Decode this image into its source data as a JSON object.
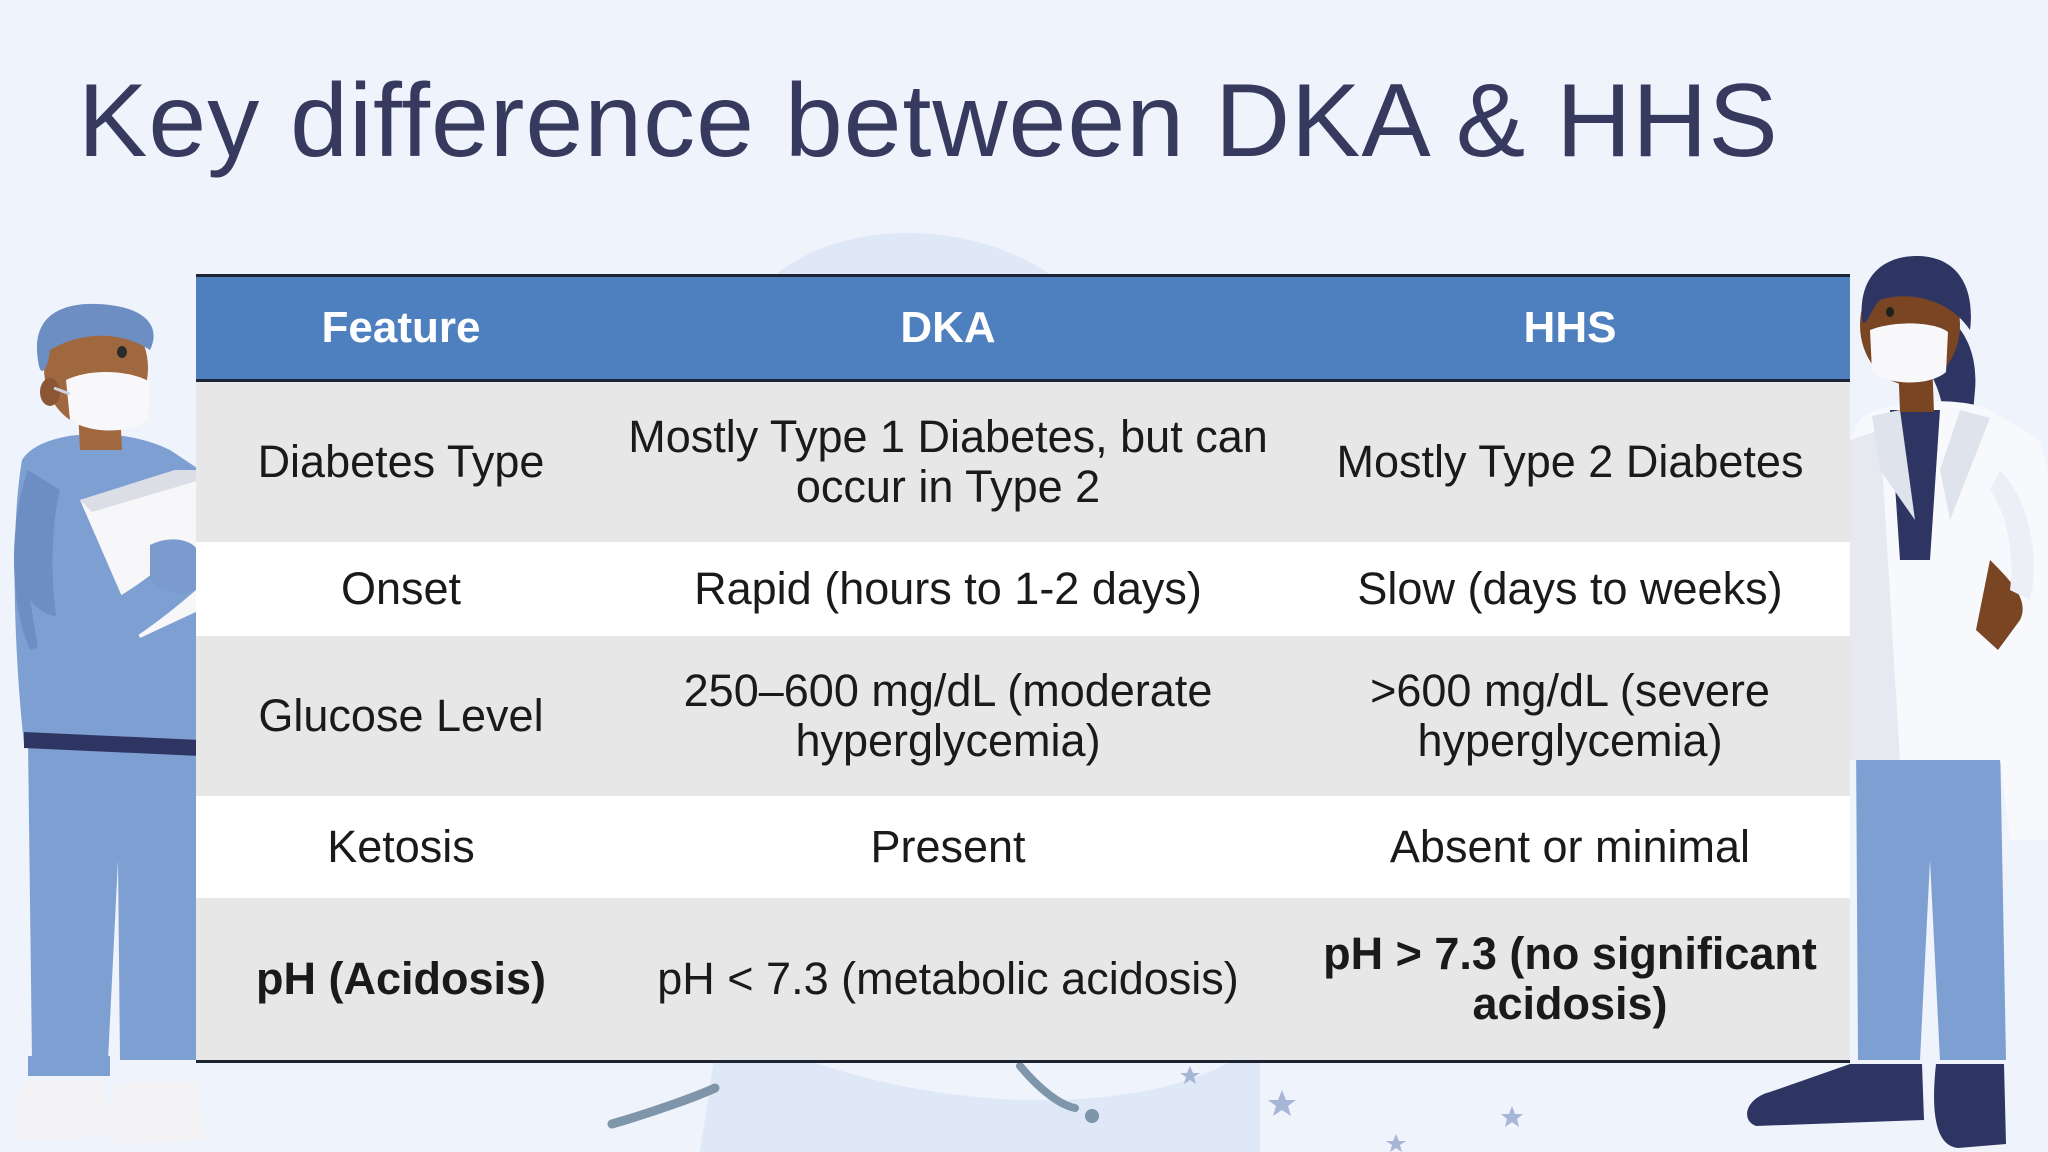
{
  "slide": {
    "title": "Key difference between DKA & HHS"
  },
  "table": {
    "headers": [
      "Feature",
      "DKA",
      "HHS"
    ],
    "rows": [
      {
        "feature": "Diabetes Type",
        "dka": "Mostly Type 1 Diabetes, but can occur in Type 2",
        "hhs": "Mostly Type 2 Diabetes",
        "bold": false
      },
      {
        "feature": "Onset",
        "dka": "Rapid (hours to 1-2 days)",
        "hhs": "Slow (days to weeks)",
        "bold": false
      },
      {
        "feature": "Glucose Level",
        "dka": "250–600 mg/dL (moderate hyperglycemia)",
        "hhs": ">600 mg/dL (severe hyperglycemia)",
        "bold": false
      },
      {
        "feature": "Ketosis",
        "dka": "Present",
        "hhs": "Absent or minimal",
        "bold": false
      },
      {
        "feature": "pH (Acidosis)",
        "dka": "pH < 7.3 (metabolic acidosis)",
        "hhs": "pH > 7.3 (no significant acidosis)",
        "bold": true
      }
    ]
  },
  "colors": {
    "background": "#eef3fc",
    "title": "#353a5e",
    "header_fill": "#4e7fbe",
    "row_shade": "#e7e7e8",
    "row_plain": "#ffffff",
    "scrubs": "#7e9fd1",
    "scrubs_dark": "#2f3563"
  },
  "illustrations": {
    "left": "nurse-in-scrubs-with-clipboard",
    "right": "doctor-in-white-coat"
  }
}
